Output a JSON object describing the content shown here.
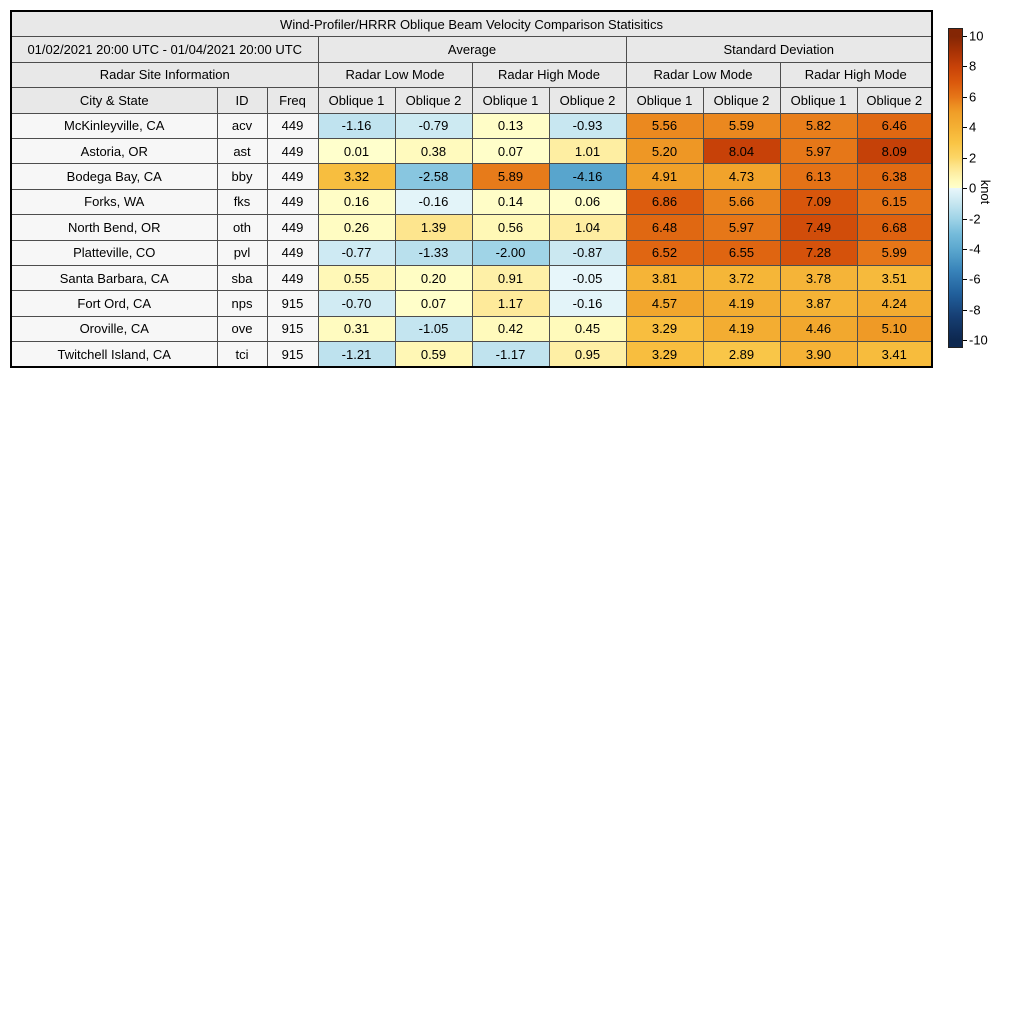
{
  "title": "Wind-Profiler/HRRR Oblique Beam Velocity Comparison Statisitics",
  "header": {
    "date_range": "01/02/2021 20:00 UTC - 01/04/2021 20:00 UTC",
    "site_info": "Radar Site Information",
    "average": "Average",
    "std_dev": "Standard Deviation",
    "low_mode": "Radar Low Mode",
    "high_mode": "Radar High Mode",
    "oblique1": "Oblique 1",
    "oblique2": "Oblique 2",
    "city_state": "City & State",
    "id": "ID",
    "freq": "Freq"
  },
  "colorbar": {
    "label": "knot",
    "ticks": [
      10,
      8,
      6,
      4,
      2,
      0,
      -2,
      -4,
      -6,
      -8,
      -10
    ],
    "min": -10,
    "max": 10,
    "positive_end_color": "#842605",
    "zero_positive_color": "#ffffcc",
    "zero_negative_color": "#e9f7fb",
    "negative_end_color": "#0d2850"
  },
  "chart_data": {
    "type": "heatmap-table",
    "title": "Wind-Profiler/HRRR Oblique Beam Velocity Comparison Statisitics",
    "value_unit": "knot",
    "color_scale": {
      "min": -10,
      "max": 10
    },
    "column_groups": [
      "Average / Radar Low Mode",
      "Average / Radar High Mode",
      "Standard Deviation / Radar Low Mode",
      "Standard Deviation / Radar High Mode"
    ],
    "value_columns": [
      "Avg Low Oblique 1",
      "Avg Low Oblique 2",
      "Avg High Oblique 1",
      "Avg High Oblique 2",
      "SD Low Oblique 1",
      "SD Low Oblique 2",
      "SD High Oblique 1",
      "SD High Oblique 2"
    ],
    "rows": [
      {
        "city": "McKinleyville, CA",
        "id": "acv",
        "freq": "449",
        "values": [
          "-1.16",
          "-0.79",
          "0.13",
          "-0.93",
          "5.56",
          "5.59",
          "5.82",
          "6.46"
        ]
      },
      {
        "city": "Astoria, OR",
        "id": "ast",
        "freq": "449",
        "values": [
          "0.01",
          "0.38",
          "0.07",
          "1.01",
          "5.20",
          "8.04",
          "5.97",
          "8.09"
        ]
      },
      {
        "city": "Bodega Bay, CA",
        "id": "bby",
        "freq": "449",
        "values": [
          "3.32",
          "-2.58",
          "5.89",
          "-4.16",
          "4.91",
          "4.73",
          "6.13",
          "6.38"
        ]
      },
      {
        "city": "Forks, WA",
        "id": "fks",
        "freq": "449",
        "values": [
          "0.16",
          "-0.16",
          "0.14",
          "0.06",
          "6.86",
          "5.66",
          "7.09",
          "6.15"
        ]
      },
      {
        "city": "North Bend, OR",
        "id": "oth",
        "freq": "449",
        "values": [
          "0.26",
          "1.39",
          "0.56",
          "1.04",
          "6.48",
          "5.97",
          "7.49",
          "6.68"
        ]
      },
      {
        "city": "Platteville, CO",
        "id": "pvl",
        "freq": "449",
        "values": [
          "-0.77",
          "-1.33",
          "-2.00",
          "-0.87",
          "6.52",
          "6.55",
          "7.28",
          "5.99"
        ]
      },
      {
        "city": "Santa Barbara, CA",
        "id": "sba",
        "freq": "449",
        "values": [
          "0.55",
          "0.20",
          "0.91",
          "-0.05",
          "3.81",
          "3.72",
          "3.78",
          "3.51"
        ]
      },
      {
        "city": "Fort Ord, CA",
        "id": "nps",
        "freq": "915",
        "values": [
          "-0.70",
          "0.07",
          "1.17",
          "-0.16",
          "4.57",
          "4.19",
          "3.87",
          "4.24"
        ]
      },
      {
        "city": "Oroville, CA",
        "id": "ove",
        "freq": "915",
        "values": [
          "0.31",
          "-1.05",
          "0.42",
          "0.45",
          "3.29",
          "4.19",
          "4.46",
          "5.10"
        ]
      },
      {
        "city": "Twitchell Island, CA",
        "id": "tci",
        "freq": "915",
        "values": [
          "-1.21",
          "0.59",
          "-1.17",
          "0.95",
          "3.29",
          "2.89",
          "3.90",
          "3.41"
        ]
      }
    ]
  }
}
